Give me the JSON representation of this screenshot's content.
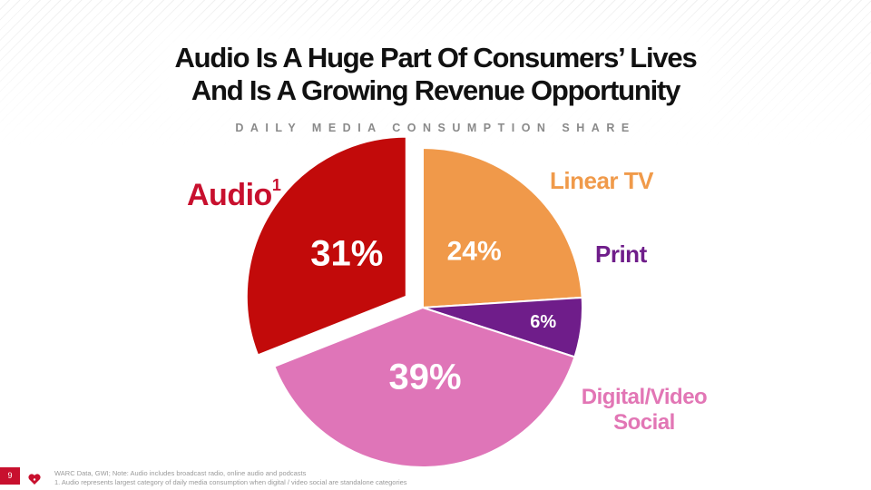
{
  "header": {
    "title_line1": "Audio Is A Huge Part Of Consumers’ Lives",
    "title_line2": "And Is A Growing Revenue Opportunity",
    "subtitle": "DAILY MEDIA CONSUMPTION SHARE"
  },
  "chart_data": {
    "type": "pie",
    "title": "DAILY MEDIA CONSUMPTION SHARE",
    "start_angle_deg": 0,
    "exploded": "Audio",
    "slices": [
      {
        "name": "Audio",
        "label": "Audio",
        "superscript": "1",
        "value": 31,
        "display": "31%",
        "color": "#c20a0a"
      },
      {
        "name": "Linear TV",
        "label": "Linear TV",
        "value": 24,
        "display": "24%",
        "color": "#f0994a"
      },
      {
        "name": "Print",
        "label": "Print",
        "value": 6,
        "display": "6%",
        "color": "#6f1d8a"
      },
      {
        "name": "Digital/Video Social",
        "label_line1": "Digital/Video",
        "label_line2": "Social",
        "value": 39,
        "display": "39%",
        "color": "#df75b8"
      }
    ]
  },
  "footer": {
    "page_number": "9",
    "source": "WARC Data, GWI; Note: Audio includes broadcast radio, online audio and podcasts",
    "note": "1. Audio represents largest category of daily media consumption when digital / video social are standalone categories"
  }
}
